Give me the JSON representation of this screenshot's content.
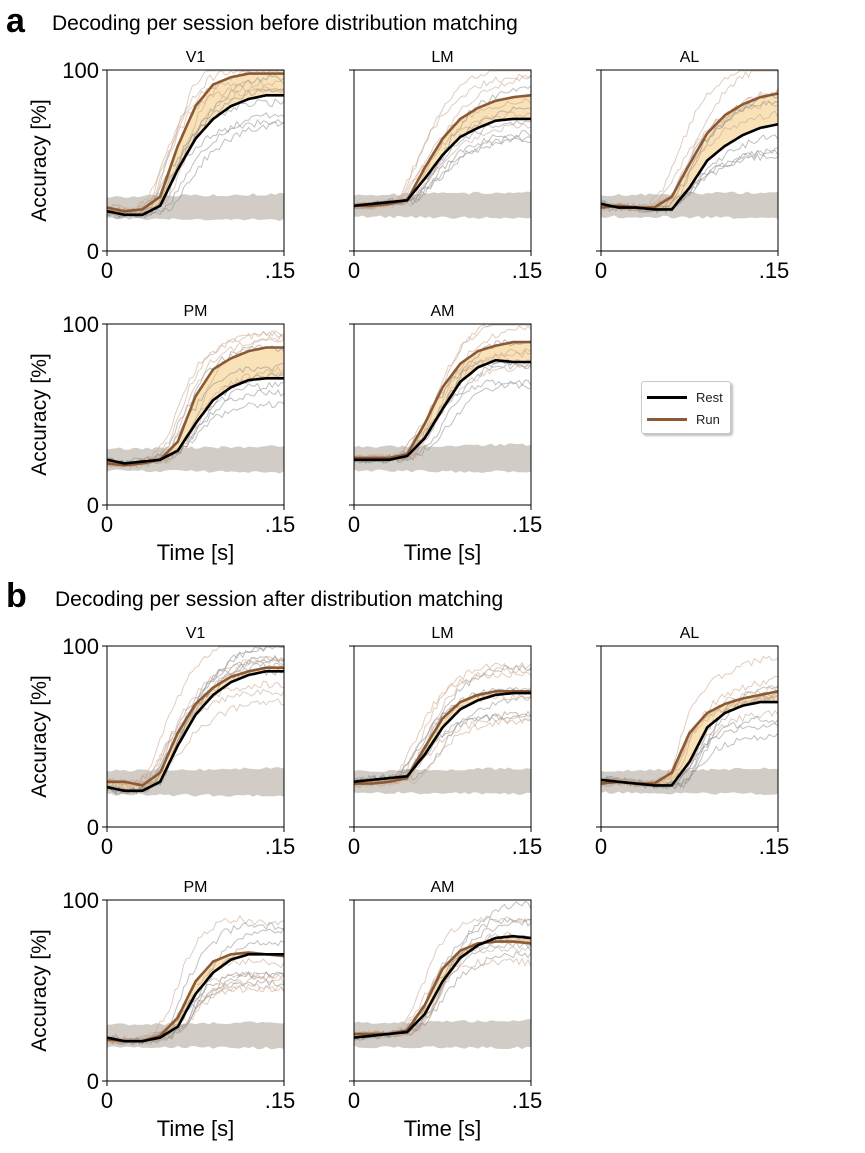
{
  "figure": {
    "panel_a": {
      "letter": "a",
      "title": "Decoding per session before distribution matching"
    },
    "panel_b": {
      "letter": "b",
      "title": "Decoding per session after distribution matching"
    },
    "legend": [
      {
        "label": "Rest",
        "color": "#000000"
      },
      {
        "label": "Run",
        "color": "#8b5a35"
      }
    ],
    "colors": {
      "rest": "#000000",
      "run": "#8b5a35",
      "rest_session": "#8c8c8c",
      "run_session": "#c9a48a",
      "shade": "#f6d49a",
      "chance": "#c9c4bc"
    }
  },
  "chart_data": [
    {
      "type": "line",
      "panel": "a",
      "title": "V1",
      "xlabel": "",
      "ylabel": "Accuracy [%]",
      "xlim": [
        0,
        0.15
      ],
      "ylim": [
        0,
        100
      ],
      "xticklabels": [
        "0",
        ".15"
      ],
      "yticklabels": [
        "0",
        "100"
      ],
      "x": [
        0,
        0.015,
        0.03,
        0.045,
        0.06,
        0.075,
        0.09,
        0.105,
        0.12,
        0.135,
        0.15
      ],
      "series": [
        {
          "name": "Rest",
          "values": [
            22,
            20,
            20,
            25,
            45,
            62,
            73,
            80,
            84,
            86,
            86
          ]
        },
        {
          "name": "Run",
          "values": [
            24,
            22,
            23,
            30,
            58,
            80,
            92,
            96,
            98,
            98,
            98
          ]
        }
      ],
      "chance_band": [
        18,
        30
      ]
    },
    {
      "type": "line",
      "panel": "a",
      "title": "LM",
      "xlabel": "",
      "ylabel": "",
      "xlim": [
        0,
        0.15
      ],
      "ylim": [
        0,
        100
      ],
      "xticklabels": [
        "0",
        ".15"
      ],
      "yticklabels": [],
      "x": [
        0,
        0.015,
        0.03,
        0.045,
        0.06,
        0.075,
        0.09,
        0.105,
        0.12,
        0.135,
        0.15
      ],
      "series": [
        {
          "name": "Rest",
          "values": [
            25,
            26,
            27,
            28,
            40,
            53,
            63,
            68,
            72,
            73,
            73
          ]
        },
        {
          "name": "Run",
          "values": [
            25,
            25,
            26,
            28,
            46,
            62,
            73,
            79,
            83,
            85,
            86
          ]
        }
      ],
      "chance_band": [
        19,
        31
      ]
    },
    {
      "type": "line",
      "panel": "a",
      "title": "AL",
      "xlabel": "",
      "ylabel": "",
      "xlim": [
        0,
        0.15
      ],
      "ylim": [
        0,
        100
      ],
      "xticklabels": [
        "0",
        ".15"
      ],
      "yticklabels": [],
      "x": [
        0,
        0.015,
        0.03,
        0.045,
        0.06,
        0.075,
        0.09,
        0.105,
        0.12,
        0.135,
        0.15
      ],
      "series": [
        {
          "name": "Rest",
          "values": [
            26,
            24,
            24,
            23,
            23,
            35,
            50,
            58,
            64,
            68,
            70
          ]
        },
        {
          "name": "Run",
          "values": [
            24,
            25,
            24,
            24,
            30,
            48,
            65,
            75,
            81,
            85,
            87
          ]
        }
      ],
      "chance_band": [
        19,
        31
      ]
    },
    {
      "type": "line",
      "panel": "a",
      "title": "PM",
      "xlabel": "Time [s]",
      "ylabel": "Accuracy [%]",
      "xlim": [
        0,
        0.15
      ],
      "ylim": [
        0,
        100
      ],
      "xticklabels": [
        "0",
        ".15"
      ],
      "yticklabels": [
        "0",
        "100"
      ],
      "x": [
        0,
        0.015,
        0.03,
        0.045,
        0.06,
        0.075,
        0.09,
        0.105,
        0.12,
        0.135,
        0.15
      ],
      "series": [
        {
          "name": "Rest",
          "values": [
            25,
            23,
            24,
            25,
            30,
            45,
            58,
            65,
            69,
            70,
            70
          ]
        },
        {
          "name": "Run",
          "values": [
            23,
            22,
            23,
            25,
            35,
            60,
            75,
            81,
            85,
            87,
            87
          ]
        }
      ],
      "chance_band": [
        19,
        31
      ]
    },
    {
      "type": "line",
      "panel": "a",
      "title": "AM",
      "xlabel": "Time [s]",
      "ylabel": "",
      "xlim": [
        0,
        0.15
      ],
      "ylim": [
        0,
        100
      ],
      "xticklabels": [
        "0",
        ".15"
      ],
      "yticklabels": [],
      "x": [
        0,
        0.015,
        0.03,
        0.045,
        0.06,
        0.075,
        0.09,
        0.105,
        0.12,
        0.135,
        0.15
      ],
      "series": [
        {
          "name": "Rest",
          "values": [
            25,
            25,
            25,
            27,
            37,
            53,
            68,
            76,
            80,
            79,
            79
          ]
        },
        {
          "name": "Run",
          "values": [
            26,
            26,
            26,
            28,
            45,
            65,
            78,
            85,
            88,
            90,
            90
          ]
        }
      ],
      "chance_band": [
        19,
        32
      ]
    },
    {
      "type": "line",
      "panel": "b",
      "title": "V1",
      "xlabel": "",
      "ylabel": "Accuracy [%]",
      "xlim": [
        0,
        0.15
      ],
      "ylim": [
        0,
        100
      ],
      "xticklabels": [
        "0",
        ".15"
      ],
      "yticklabels": [
        "0",
        "100"
      ],
      "x": [
        0,
        0.015,
        0.03,
        0.045,
        0.06,
        0.075,
        0.09,
        0.105,
        0.12,
        0.135,
        0.15
      ],
      "series": [
        {
          "name": "Rest",
          "values": [
            22,
            20,
            20,
            25,
            45,
            62,
            73,
            80,
            84,
            86,
            86
          ]
        },
        {
          "name": "Run",
          "values": [
            25,
            25,
            23,
            30,
            52,
            68,
            77,
            83,
            86,
            88,
            88
          ]
        }
      ],
      "chance_band": [
        18,
        31
      ]
    },
    {
      "type": "line",
      "panel": "b",
      "title": "LM",
      "xlabel": "",
      "ylabel": "",
      "xlim": [
        0,
        0.15
      ],
      "ylim": [
        0,
        100
      ],
      "xticklabels": [
        "0",
        ".15"
      ],
      "yticklabels": [],
      "x": [
        0,
        0.015,
        0.03,
        0.045,
        0.06,
        0.075,
        0.09,
        0.105,
        0.12,
        0.135,
        0.15
      ],
      "series": [
        {
          "name": "Rest",
          "values": [
            25,
            26,
            27,
            28,
            40,
            55,
            65,
            70,
            73,
            74,
            74
          ]
        },
        {
          "name": "Run",
          "values": [
            24,
            24,
            25,
            27,
            44,
            60,
            69,
            73,
            75,
            75,
            75
          ]
        }
      ],
      "chance_band": [
        19,
        31
      ]
    },
    {
      "type": "line",
      "panel": "b",
      "title": "AL",
      "xlabel": "",
      "ylabel": "",
      "xlim": [
        0,
        0.15
      ],
      "ylim": [
        0,
        100
      ],
      "xticklabels": [
        "0",
        ".15"
      ],
      "yticklabels": [],
      "x": [
        0,
        0.015,
        0.03,
        0.045,
        0.06,
        0.075,
        0.09,
        0.105,
        0.12,
        0.135,
        0.15
      ],
      "series": [
        {
          "name": "Rest",
          "values": [
            26,
            25,
            24,
            23,
            23,
            36,
            55,
            63,
            67,
            69,
            69
          ]
        },
        {
          "name": "Run",
          "values": [
            24,
            25,
            24,
            24,
            30,
            52,
            63,
            68,
            71,
            73,
            75
          ]
        }
      ],
      "chance_band": [
        19,
        31
      ]
    },
    {
      "type": "line",
      "panel": "b",
      "title": "PM",
      "xlabel": "Time [s]",
      "ylabel": "Accuracy [%]",
      "xlim": [
        0,
        0.15
      ],
      "ylim": [
        0,
        100
      ],
      "xticklabels": [
        "0",
        ".15"
      ],
      "yticklabels": [
        "0",
        "100"
      ],
      "x": [
        0,
        0.015,
        0.03,
        0.045,
        0.06,
        0.075,
        0.09,
        0.105,
        0.12,
        0.135,
        0.15
      ],
      "series": [
        {
          "name": "Rest",
          "values": [
            24,
            22,
            22,
            24,
            30,
            48,
            60,
            67,
            70,
            70,
            70
          ]
        },
        {
          "name": "Run",
          "values": [
            23,
            22,
            22,
            25,
            35,
            55,
            66,
            70,
            71,
            70,
            69
          ]
        }
      ],
      "chance_band": [
        19,
        31
      ]
    },
    {
      "type": "line",
      "panel": "b",
      "title": "AM",
      "xlabel": "Time [s]",
      "ylabel": "",
      "xlim": [
        0,
        0.15
      ],
      "ylim": [
        0,
        100
      ],
      "xticklabels": [
        "0",
        ".15"
      ],
      "yticklabels": [],
      "x": [
        0,
        0.015,
        0.03,
        0.045,
        0.06,
        0.075,
        0.09,
        0.105,
        0.12,
        0.135,
        0.15
      ],
      "series": [
        {
          "name": "Rest",
          "values": [
            24,
            25,
            26,
            27,
            37,
            55,
            68,
            75,
            79,
            80,
            79
          ]
        },
        {
          "name": "Run",
          "values": [
            26,
            26,
            26,
            28,
            42,
            62,
            72,
            76,
            77,
            77,
            76
          ]
        }
      ],
      "chance_band": [
        19,
        32
      ]
    }
  ]
}
